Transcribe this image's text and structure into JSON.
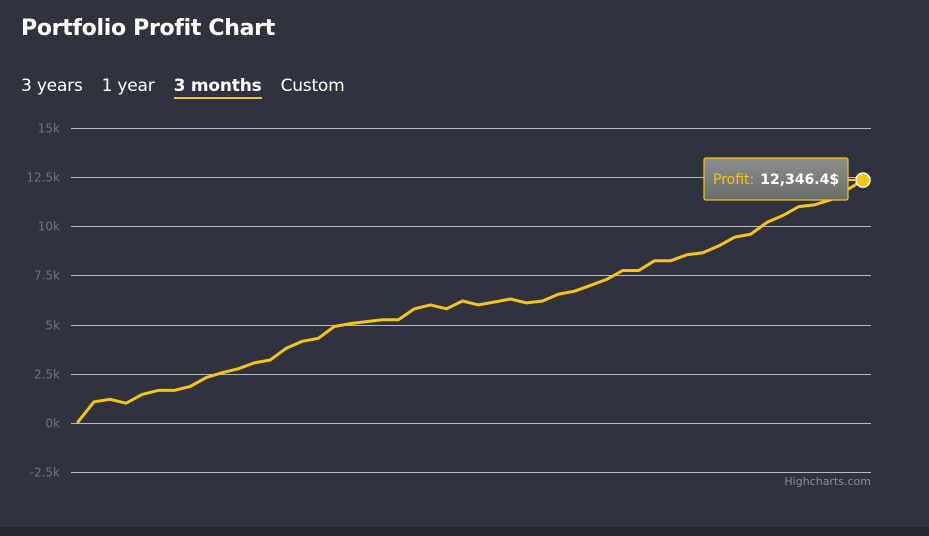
{
  "header": {
    "title": "Portfolio Profit Chart"
  },
  "tabs": [
    {
      "label": "3 years",
      "active": false
    },
    {
      "label": "1 year",
      "active": false
    },
    {
      "label": "3 months",
      "active": true
    },
    {
      "label": "Custom",
      "active": false
    }
  ],
  "tooltip": {
    "label": "Profit:",
    "value": "12,346.4$"
  },
  "credits": "Highcharts.com",
  "colors": {
    "line": "#f5c518",
    "grid": "#b8bbc4",
    "axis_text": "#6f7380",
    "background": "#30333d"
  },
  "chart_data": {
    "type": "line",
    "grid": true,
    "legend": "none",
    "ylim": [
      -2500,
      15000
    ],
    "yticks": [
      -2500,
      0,
      2500,
      5000,
      7500,
      10000,
      12500,
      15000
    ],
    "ytick_labels": [
      "-2.5k",
      "0k",
      "2.5k",
      "5k",
      "7.5k",
      "10k",
      "12.5k",
      "15k"
    ],
    "series": [
      {
        "values": [
          50,
          1070,
          1200,
          1000,
          1450,
          1650,
          1650,
          1850,
          2300,
          2550,
          2750,
          3050,
          3200,
          3800,
          4150,
          4300,
          4900,
          5050,
          5150,
          5250,
          5250,
          5800,
          6000,
          5800,
          6200,
          6000,
          6150,
          6300,
          6100,
          6200,
          6550,
          6700,
          7000,
          7300,
          7750,
          7750,
          8250,
          8250,
          8550,
          8650,
          9000,
          9450,
          9600,
          10200,
          10550,
          11000,
          11100,
          11350,
          11850,
          12346.4
        ]
      }
    ]
  }
}
